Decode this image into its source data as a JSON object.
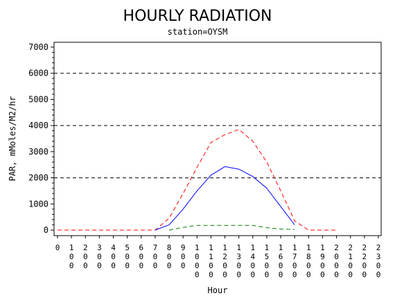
{
  "chart_data": {
    "type": "line",
    "title": "HOURLY RADIATION",
    "subtitle": "station=OYSM",
    "xlabel": "Hour",
    "ylabel": "PAR, mMoles/M2/hr",
    "x_ticks": [
      "0",
      "100",
      "200",
      "300",
      "400",
      "500",
      "600",
      "700",
      "800",
      "900",
      "1000",
      "1100",
      "1200",
      "1300",
      "1400",
      "1500",
      "1600",
      "1700",
      "1800",
      "1900",
      "2000",
      "2100",
      "2200",
      "2300"
    ],
    "y_ticks": [
      "0",
      "1000",
      "2000",
      "3000",
      "4000",
      "5000",
      "6000",
      "7000"
    ],
    "xlim": [
      0,
      2300
    ],
    "ylim": [
      0,
      7000
    ],
    "reference_lines_y": [
      2000,
      4000,
      6000
    ],
    "series": [
      {
        "color": "#ff0000",
        "dash": "dashed",
        "x": [
          0,
          100,
          200,
          300,
          400,
          500,
          600,
          700,
          800,
          900,
          1000,
          1100,
          1200,
          1300,
          1400,
          1500,
          1600,
          1700,
          1800,
          1900,
          2000
        ],
        "values": [
          0,
          0,
          0,
          0,
          0,
          0,
          0,
          0,
          450,
          1400,
          2400,
          3350,
          3650,
          3850,
          3400,
          2600,
          1500,
          350,
          0,
          0,
          0
        ]
      },
      {
        "color": "#0000ff",
        "dash": "solid",
        "x": [
          700,
          800,
          900,
          1000,
          1100,
          1200,
          1300,
          1400,
          1500,
          1600,
          1700
        ],
        "values": [
          0,
          200,
          800,
          1500,
          2100,
          2430,
          2330,
          2050,
          1600,
          900,
          200
        ]
      },
      {
        "color": "#008000",
        "dash": "dashed",
        "x": [
          800,
          900,
          1000,
          1100,
          1200,
          1300,
          1400,
          1500,
          1600,
          1700
        ],
        "values": [
          0,
          100,
          180,
          180,
          180,
          180,
          180,
          90,
          40,
          20
        ]
      }
    ]
  }
}
